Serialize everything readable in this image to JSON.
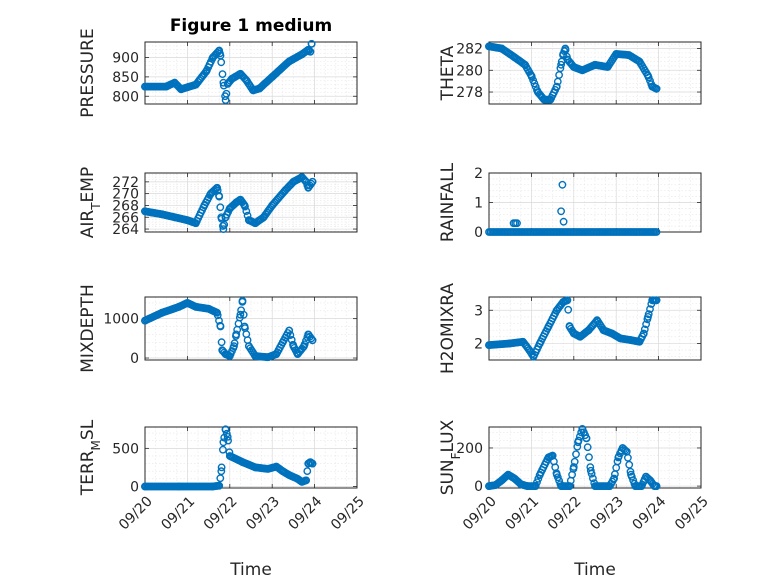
{
  "figure_title": "Figure 1 medium",
  "colors": {
    "marker": "#0072BD",
    "axis": "#262626",
    "grid": "#d9d9d9"
  },
  "x_tick_labels": [
    "09/20",
    "09/21",
    "09/22",
    "09/23",
    "09/24",
    "09/25"
  ],
  "xlabel": "Time",
  "chart_data": [
    {
      "type": "scatter",
      "ylabel": "PRESSURE",
      "ylabel_sub": "",
      "title": "Figure 1 medium",
      "xlim": [
        0,
        5
      ],
      "ylim": [
        780,
        940
      ],
      "yticks": [
        800,
        850,
        900
      ],
      "x_tick_labels": [
        "09/20",
        "09/21",
        "09/22",
        "09/23",
        "09/24",
        "09/25"
      ],
      "grid": true,
      "keys": [
        [
          0,
          825
        ],
        [
          0.5,
          825
        ],
        [
          0.7,
          835
        ],
        [
          0.85,
          818
        ],
        [
          1.2,
          830
        ],
        [
          1.45,
          865
        ],
        [
          1.6,
          900
        ],
        [
          1.75,
          918
        ],
        [
          1.78,
          905
        ],
        [
          1.85,
          835
        ],
        [
          1.9,
          790
        ],
        [
          1.95,
          832
        ],
        [
          2.05,
          845
        ],
        [
          2.25,
          858
        ],
        [
          2.4,
          840
        ],
        [
          2.55,
          815
        ],
        [
          2.7,
          820
        ],
        [
          3.0,
          850
        ],
        [
          3.4,
          890
        ],
        [
          3.7,
          908
        ],
        [
          3.85,
          920
        ],
        [
          3.9,
          915
        ],
        [
          3.93,
          935
        ]
      ]
    },
    {
      "type": "scatter",
      "ylabel": "THETA",
      "ylabel_sub": "",
      "xlim": [
        0,
        5
      ],
      "ylim": [
        276.9,
        282.6
      ],
      "yticks": [
        278,
        280,
        282
      ],
      "x_tick_labels": [
        "09/20",
        "09/21",
        "09/22",
        "09/23",
        "09/24",
        "09/25"
      ],
      "grid": true,
      "keys": [
        [
          0,
          282.2
        ],
        [
          0.3,
          282.0
        ],
        [
          0.6,
          281.2
        ],
        [
          0.85,
          280.5
        ],
        [
          1.0,
          279.5
        ],
        [
          1.15,
          278.0
        ],
        [
          1.3,
          277.3
        ],
        [
          1.45,
          277.3
        ],
        [
          1.6,
          278.5
        ],
        [
          1.7,
          280.5
        ],
        [
          1.75,
          281.5
        ],
        [
          1.8,
          282.0
        ],
        [
          1.85,
          281.0
        ],
        [
          2.0,
          280.3
        ],
        [
          2.2,
          280.0
        ],
        [
          2.5,
          280.5
        ],
        [
          2.8,
          280.3
        ],
        [
          3.0,
          281.5
        ],
        [
          3.3,
          281.4
        ],
        [
          3.55,
          280.8
        ],
        [
          3.75,
          279.5
        ],
        [
          3.85,
          278.5
        ],
        [
          3.95,
          278.3
        ]
      ]
    },
    {
      "type": "scatter",
      "ylabel": "AIR",
      "ylabel_sub": "T",
      "ylabel_tail": "EMP",
      "xlim": [
        0,
        5
      ],
      "ylim": [
        263.5,
        273.5
      ],
      "yticks": [
        264,
        266,
        268,
        270,
        272
      ],
      "x_tick_labels": [
        "09/20",
        "09/21",
        "09/22",
        "09/23",
        "09/24",
        "09/25"
      ],
      "grid": true,
      "keys": [
        [
          0,
          267.0
        ],
        [
          0.4,
          266.5
        ],
        [
          0.7,
          266.0
        ],
        [
          1.0,
          265.5
        ],
        [
          1.2,
          265.0
        ],
        [
          1.4,
          268.0
        ],
        [
          1.55,
          270.0
        ],
        [
          1.7,
          271.0
        ],
        [
          1.75,
          269.5
        ],
        [
          1.8,
          266.0
        ],
        [
          1.85,
          264.0
        ],
        [
          1.9,
          266.0
        ],
        [
          2.0,
          267.5
        ],
        [
          2.15,
          268.5
        ],
        [
          2.25,
          269.0
        ],
        [
          2.35,
          268.0
        ],
        [
          2.45,
          265.5
        ],
        [
          2.6,
          265.0
        ],
        [
          2.8,
          266.0
        ],
        [
          3.0,
          268.0
        ],
        [
          3.3,
          270.5
        ],
        [
          3.5,
          272.0
        ],
        [
          3.7,
          272.8
        ],
        [
          3.8,
          272.0
        ],
        [
          3.85,
          271.0
        ],
        [
          3.95,
          272.0
        ]
      ]
    },
    {
      "type": "scatter",
      "ylabel": "RAINFALL",
      "ylabel_sub": "",
      "xlim": [
        0,
        5
      ],
      "ylim": [
        0,
        2
      ],
      "yticks": [
        0,
        1,
        2
      ],
      "x_tick_labels": [
        "09/20",
        "09/21",
        "09/22",
        "09/23",
        "09/24",
        "09/25"
      ],
      "grid": true,
      "baseline_range": [
        0,
        3.95
      ],
      "spikes": [
        [
          0.58,
          0.3
        ],
        [
          0.62,
          0.3
        ],
        [
          0.66,
          0.3
        ],
        [
          1.7,
          0.7
        ],
        [
          1.73,
          1.6
        ],
        [
          1.76,
          0.35
        ]
      ]
    },
    {
      "type": "scatter",
      "ylabel": "MIXDEPTH",
      "ylabel_sub": "",
      "xlim": [
        0,
        5
      ],
      "ylim": [
        -50,
        1550
      ],
      "yticks": [
        0,
        1000
      ],
      "x_tick_labels": [
        "09/20",
        "09/21",
        "09/22",
        "09/23",
        "09/24",
        "09/25"
      ],
      "grid": true,
      "keys": [
        [
          0,
          950
        ],
        [
          0.4,
          1150
        ],
        [
          0.8,
          1300
        ],
        [
          1.0,
          1400
        ],
        [
          1.2,
          1300
        ],
        [
          1.5,
          1250
        ],
        [
          1.7,
          1150
        ],
        [
          1.78,
          800
        ],
        [
          1.82,
          200
        ],
        [
          1.9,
          100
        ],
        [
          2.0,
          50
        ],
        [
          2.1,
          300
        ],
        [
          2.15,
          600
        ],
        [
          2.25,
          1100
        ],
        [
          2.3,
          1450
        ],
        [
          2.35,
          800
        ],
        [
          2.45,
          300
        ],
        [
          2.6,
          50
        ],
        [
          2.9,
          20
        ],
        [
          3.1,
          100
        ],
        [
          3.25,
          400
        ],
        [
          3.4,
          700
        ],
        [
          3.5,
          300
        ],
        [
          3.6,
          100
        ],
        [
          3.75,
          300
        ],
        [
          3.85,
          600
        ],
        [
          3.95,
          450
        ]
      ]
    },
    {
      "type": "scatter",
      "ylabel": "H2OMIXRA",
      "ylabel_sub": "",
      "xlim": [
        0,
        5
      ],
      "ylim": [
        1.5,
        3.4
      ],
      "yticks": [
        2,
        3
      ],
      "x_tick_labels": [
        "09/20",
        "09/21",
        "09/22",
        "09/23",
        "09/24",
        "09/25"
      ],
      "grid": true,
      "keys": [
        [
          0,
          1.95
        ],
        [
          0.5,
          2.0
        ],
        [
          0.8,
          2.05
        ],
        [
          0.95,
          1.8
        ],
        [
          1.05,
          1.6
        ],
        [
          1.2,
          2.0
        ],
        [
          1.4,
          2.5
        ],
        [
          1.6,
          3.0
        ],
        [
          1.75,
          3.25
        ],
        [
          1.85,
          3.3
        ],
        [
          1.9,
          2.5
        ],
        [
          2.0,
          2.3
        ],
        [
          2.15,
          2.2
        ],
        [
          2.35,
          2.4
        ],
        [
          2.55,
          2.7
        ],
        [
          2.7,
          2.4
        ],
        [
          2.9,
          2.3
        ],
        [
          3.1,
          2.15
        ],
        [
          3.35,
          2.1
        ],
        [
          3.55,
          2.05
        ],
        [
          3.65,
          2.3
        ],
        [
          3.75,
          2.8
        ],
        [
          3.85,
          3.3
        ],
        [
          3.95,
          3.3
        ]
      ]
    },
    {
      "type": "scatter",
      "ylabel": "TERR",
      "ylabel_sub": "M",
      "ylabel_tail": "SL",
      "xlim": [
        0,
        5
      ],
      "ylim": [
        -20,
        780
      ],
      "yticks": [
        0,
        500
      ],
      "x_tick_labels": [
        "09/20",
        "09/21",
        "09/22",
        "09/23",
        "09/24",
        "09/25"
      ],
      "grid": true,
      "keys": [
        [
          0,
          0
        ],
        [
          0.8,
          0
        ],
        [
          1.6,
          0
        ],
        [
          1.75,
          10
        ],
        [
          1.8,
          200
        ],
        [
          1.85,
          580
        ],
        [
          1.9,
          750
        ],
        [
          1.95,
          650
        ],
        [
          2.0,
          400
        ],
        [
          2.3,
          320
        ],
        [
          2.6,
          250
        ],
        [
          2.9,
          230
        ],
        [
          3.1,
          260
        ],
        [
          3.25,
          200
        ],
        [
          3.4,
          150
        ],
        [
          3.6,
          100
        ],
        [
          3.7,
          60
        ],
        [
          3.8,
          80
        ],
        [
          3.85,
          300
        ],
        [
          3.9,
          320
        ],
        [
          3.95,
          300
        ]
      ]
    },
    {
      "type": "scatter",
      "ylabel": "SUN",
      "ylabel_sub": "F",
      "ylabel_tail": "LUX",
      "xlim": [
        0,
        5
      ],
      "ylim": [
        -10,
        310
      ],
      "yticks": [
        0,
        200
      ],
      "x_tick_labels": [
        "09/20",
        "09/21",
        "09/22",
        "09/23",
        "09/24",
        "09/25"
      ],
      "grid": true,
      "keys": [
        [
          0,
          0
        ],
        [
          0.15,
          5
        ],
        [
          0.3,
          30
        ],
        [
          0.45,
          60
        ],
        [
          0.6,
          40
        ],
        [
          0.75,
          10
        ],
        [
          0.9,
          0
        ],
        [
          1.1,
          0
        ],
        [
          1.2,
          60
        ],
        [
          1.4,
          150
        ],
        [
          1.5,
          160
        ],
        [
          1.6,
          60
        ],
        [
          1.7,
          0
        ],
        [
          1.9,
          0
        ],
        [
          2.0,
          100
        ],
        [
          2.1,
          230
        ],
        [
          2.2,
          300
        ],
        [
          2.3,
          250
        ],
        [
          2.4,
          80
        ],
        [
          2.5,
          0
        ],
        [
          2.85,
          0
        ],
        [
          2.95,
          40
        ],
        [
          3.05,
          150
        ],
        [
          3.15,
          200
        ],
        [
          3.25,
          180
        ],
        [
          3.35,
          60
        ],
        [
          3.45,
          0
        ],
        [
          3.6,
          0
        ],
        [
          3.7,
          50
        ],
        [
          3.8,
          30
        ],
        [
          3.9,
          0
        ],
        [
          3.95,
          0
        ]
      ]
    }
  ]
}
